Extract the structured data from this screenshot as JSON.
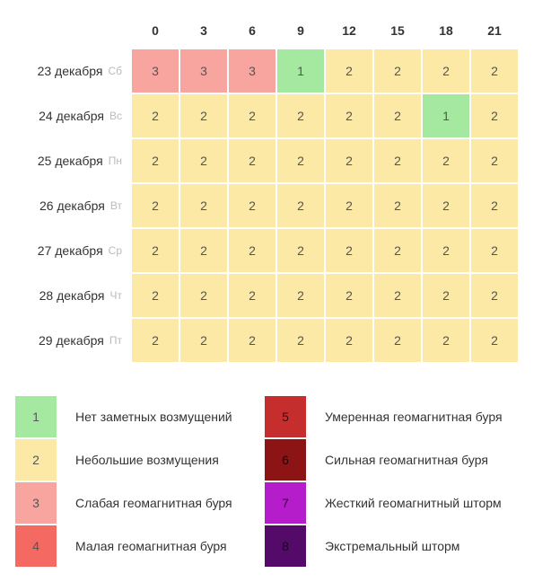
{
  "colors": {
    "level1_bg": "#a5e9a1",
    "level2_bg": "#fce9a6",
    "level3_bg": "#f8a5a0",
    "level4_bg": "#f46a63",
    "level5_bg": "#c62e2e",
    "level6_bg": "#8d1414",
    "level7_bg": "#b41dc9",
    "level8_bg": "#530a68",
    "level1_text": "#555555",
    "level2_text": "#555555",
    "level3_text": "#555555",
    "level4_text": "#555555",
    "level5_text": "#3a0d0d",
    "level6_text": "#260404",
    "level7_text": "#3a0740",
    "level8_text": "#1c0323",
    "header_text": "#333333",
    "dow_text": "#bbbbbb"
  },
  "grid": {
    "hours": [
      "0",
      "3",
      "6",
      "9",
      "12",
      "15",
      "18",
      "21"
    ],
    "rows": [
      {
        "date": "23 декабря",
        "dow": "Сб",
        "values": [
          3,
          3,
          3,
          1,
          2,
          2,
          2,
          2
        ]
      },
      {
        "date": "24 декабря",
        "dow": "Вс",
        "values": [
          2,
          2,
          2,
          2,
          2,
          2,
          1,
          2
        ]
      },
      {
        "date": "25 декабря",
        "dow": "Пн",
        "values": [
          2,
          2,
          2,
          2,
          2,
          2,
          2,
          2
        ]
      },
      {
        "date": "26 декабря",
        "dow": "Вт",
        "values": [
          2,
          2,
          2,
          2,
          2,
          2,
          2,
          2
        ]
      },
      {
        "date": "27 декабря",
        "dow": "Ср",
        "values": [
          2,
          2,
          2,
          2,
          2,
          2,
          2,
          2
        ]
      },
      {
        "date": "28 декабря",
        "dow": "Чт",
        "values": [
          2,
          2,
          2,
          2,
          2,
          2,
          2,
          2
        ]
      },
      {
        "date": "29 декабря",
        "dow": "Пт",
        "values": [
          2,
          2,
          2,
          2,
          2,
          2,
          2,
          2
        ]
      }
    ]
  },
  "legend": [
    {
      "value": "1",
      "label": "Нет заметных возмущений"
    },
    {
      "value": "2",
      "label": "Небольшие возмущения"
    },
    {
      "value": "3",
      "label": "Слабая геомагнитная буря"
    },
    {
      "value": "4",
      "label": "Малая геомагнитная буря"
    },
    {
      "value": "5",
      "label": "Умеренная геомагнитная буря"
    },
    {
      "value": "6",
      "label": "Сильная геомагнитная буря"
    },
    {
      "value": "7",
      "label": "Жесткий геомагнитный шторм"
    },
    {
      "value": "8",
      "label": "Экстремальный шторм"
    }
  ]
}
